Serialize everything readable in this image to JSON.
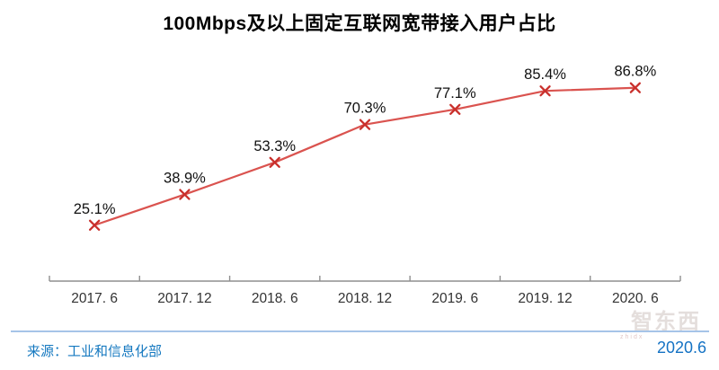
{
  "title": "100Mbps及以上固定互联网宽带接入用户占比",
  "colors": {
    "line": "#DA534F",
    "marker": "#C9302C",
    "axis": "#8F8F8F",
    "data_label": "#111111",
    "tick_label": "#333333",
    "footer_blue": "#1679C0",
    "date_blue": "#1472C4",
    "divider_blue": "#A6C4E8"
  },
  "chart_data": {
    "type": "line",
    "title": "100Mbps及以上固定互联网宽带接入用户占比",
    "categories": [
      "2017. 6",
      "2017. 12",
      "2018. 6",
      "2018. 12",
      "2019. 6",
      "2019. 12",
      "2020. 6"
    ],
    "values": [
      25.1,
      38.9,
      53.3,
      70.3,
      77.1,
      85.4,
      86.8
    ],
    "point_labels": [
      "25.1%",
      "38.9%",
      "53.3%",
      "70.3%",
      "77.1%",
      "85.4%",
      "86.8%"
    ],
    "marker": "x",
    "ylim": [
      0,
      100
    ],
    "grid": false,
    "legend": false,
    "y_axis_visible": false
  },
  "footer": {
    "source": "来源：工业和信息化部",
    "date": "2020.6"
  },
  "watermark": {
    "text": "智东西",
    "subtext": "zhidx"
  }
}
